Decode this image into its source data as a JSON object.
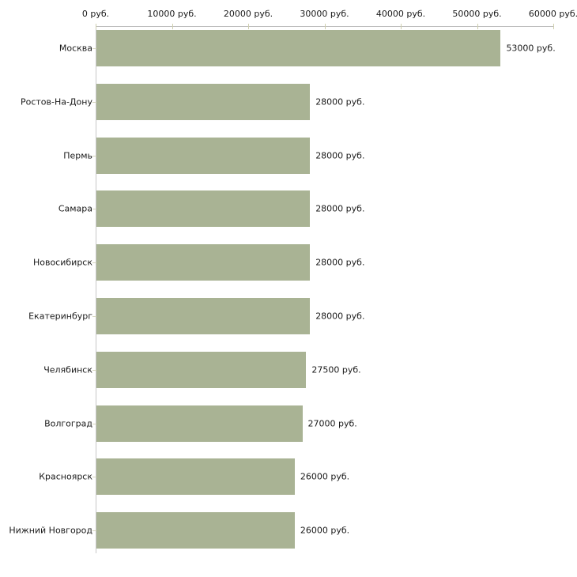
{
  "chart_data": {
    "type": "bar",
    "orientation": "horizontal",
    "title": "",
    "xlabel": "",
    "ylabel": "",
    "unit_suffix": " руб.",
    "categories": [
      "Москва",
      "Ростов-На-Дону",
      "Пермь",
      "Самара",
      "Новосибирск",
      "Екатеринбург",
      "Челябинск",
      "Волгоград",
      "Красноярск",
      "Нижний Новгород"
    ],
    "values": [
      53000,
      28000,
      28000,
      28000,
      28000,
      28000,
      27500,
      27000,
      26000,
      26000
    ],
    "value_labels": [
      "53000 руб.",
      "28000 руб.",
      "28000 руб.",
      "28000 руб.",
      "28000 руб.",
      "28000 руб.",
      "27500 руб.",
      "27000 руб.",
      "26000 руб.",
      "26000 руб."
    ],
    "xlim": [
      0,
      60000
    ],
    "x_ticks": [
      0,
      10000,
      20000,
      30000,
      40000,
      50000,
      60000
    ],
    "x_tick_labels": [
      "0 руб.",
      "10000 руб.",
      "20000 руб.",
      "30000 руб.",
      "40000 руб.",
      "50000 руб.",
      "60000 руб."
    ],
    "grid": false,
    "legend": "none",
    "bar_color": "#a9b394",
    "axis_color": "#bdbdbd",
    "tick_color": "#cfcfae",
    "text_color": "#1a1a1a",
    "background_color": "#ffffff"
  }
}
